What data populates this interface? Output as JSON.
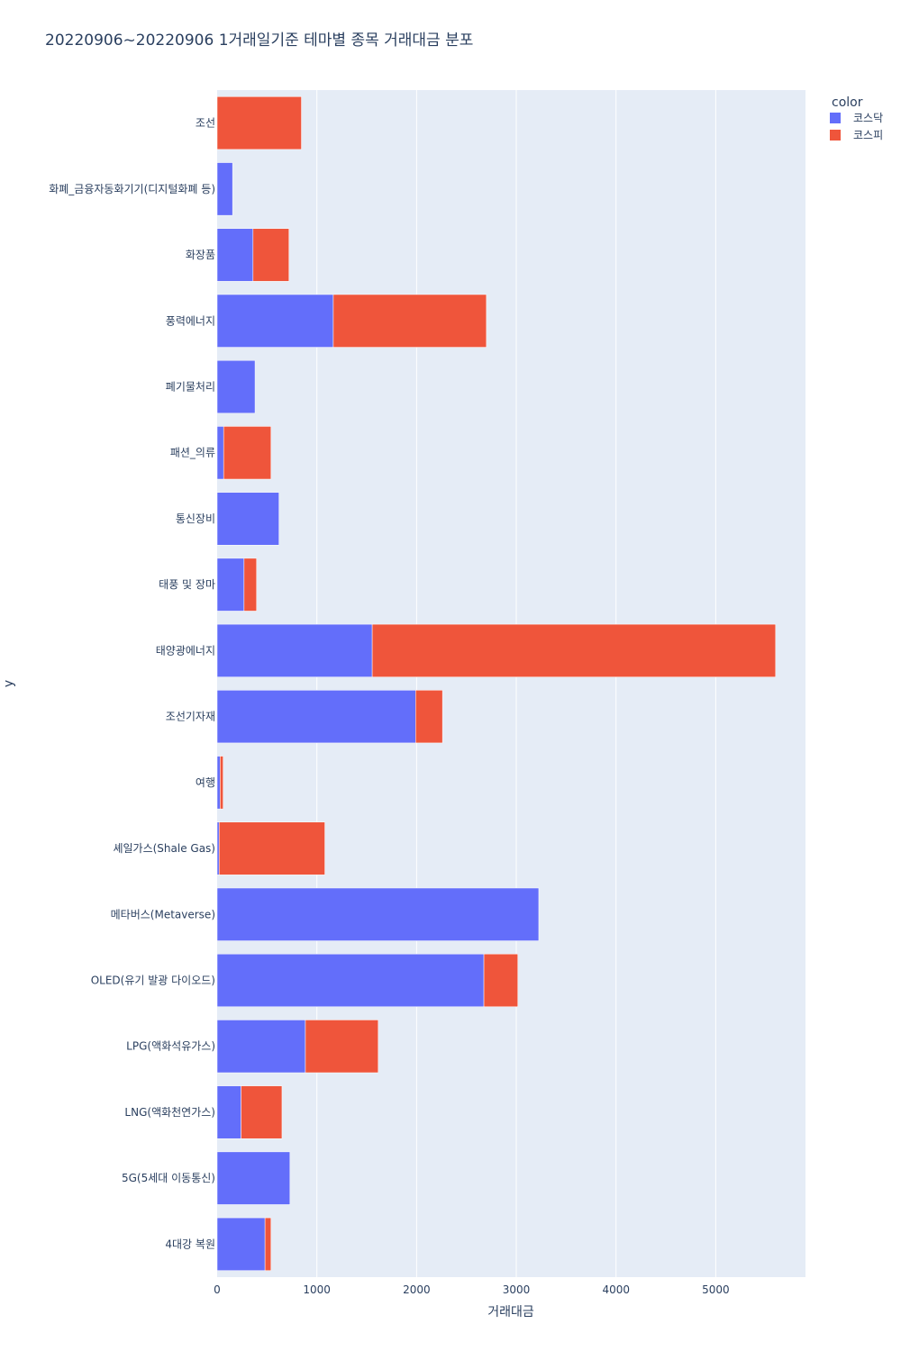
{
  "chart_data": {
    "type": "bar",
    "orientation": "horizontal",
    "barmode": "stack",
    "title": "20220906~20220906 1거래일기준 테마별 종목 거래대금 분포",
    "xlabel": "거래대금",
    "ylabel": "y",
    "xlim": [
      0,
      5900
    ],
    "xticks": [
      0,
      1000,
      2000,
      3000,
      4000,
      5000
    ],
    "grid": true,
    "legend": {
      "title": "color",
      "placement": "top-right"
    },
    "categories": [
      "조선",
      "화폐_금융자동화기기(디지털화폐 등)",
      "화장품",
      "풍력에너지",
      "폐기물처리",
      "패션_의류",
      "통신장비",
      "태풍 및 장마",
      "태양광에너지",
      "조선기자재",
      "여행",
      "셰일가스(Shale Gas)",
      "메타버스(Metaverse)",
      "OLED(유기 발광 다이오드)",
      "LPG(액화석유가스)",
      "LNG(액화천연가스)",
      "5G(5세대 이동통신)",
      "4대강 복원"
    ],
    "series": [
      {
        "name": "코스닥",
        "color": "#636efa",
        "values": [
          0,
          155,
          360,
          1165,
          380,
          65,
          620,
          270,
          1555,
          1990,
          30,
          20,
          3225,
          2675,
          885,
          240,
          730,
          480
        ]
      },
      {
        "name": "코스피",
        "color": "#ef553b",
        "values": [
          845,
          0,
          360,
          1535,
          0,
          475,
          0,
          125,
          4045,
          270,
          30,
          1060,
          0,
          340,
          730,
          410,
          0,
          60
        ]
      }
    ]
  }
}
